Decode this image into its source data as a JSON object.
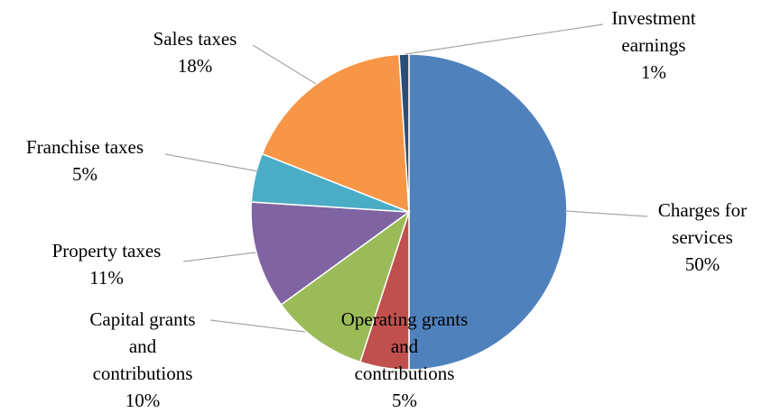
{
  "chart_data": {
    "type": "pie",
    "title": "",
    "start_angle_deg": 0,
    "direction": "clockwise",
    "slices": [
      {
        "name": "Charges for services",
        "value": 50,
        "value_label": "50%",
        "color": "#4f81bd",
        "label_lines": [
          "Charges for",
          "services",
          "50%"
        ]
      },
      {
        "name": "Operating grants and contributions",
        "value": 5,
        "value_label": "5%",
        "color": "#c0504d",
        "label_lines": [
          "Operating grants",
          "and",
          "contributions",
          "5%"
        ]
      },
      {
        "name": "Capital grants and contributions",
        "value": 10,
        "value_label": "10%",
        "color": "#9bbb59",
        "label_lines": [
          "Capital grants",
          "and",
          "contributions",
          "10%"
        ]
      },
      {
        "name": "Property taxes",
        "value": 11,
        "value_label": "11%",
        "color": "#8064a2",
        "label_lines": [
          "Property taxes",
          "11%"
        ]
      },
      {
        "name": "Franchise taxes",
        "value": 5,
        "value_label": "5%",
        "color": "#4bacc6",
        "label_lines": [
          "Franchise taxes",
          "5%"
        ]
      },
      {
        "name": "Sales taxes",
        "value": 18,
        "value_label": "18%",
        "color": "#f79646",
        "label_lines": [
          "Sales taxes",
          "18%"
        ]
      },
      {
        "name": "Investment earnings",
        "value": 1,
        "value_label": "1%",
        "color": "#2c4d75",
        "label_lines": [
          "Investment",
          "earnings",
          "1%"
        ]
      }
    ]
  }
}
